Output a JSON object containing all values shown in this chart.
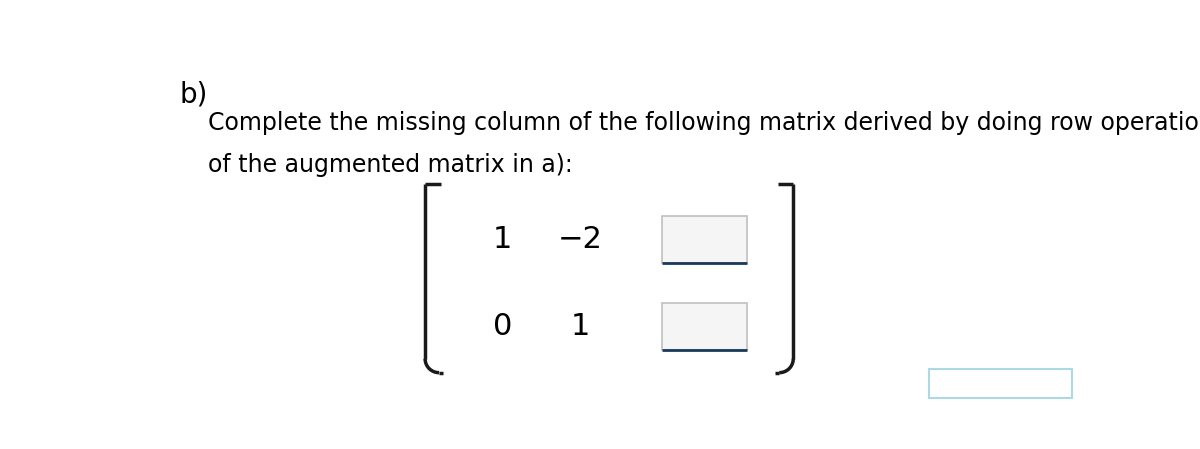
{
  "title_label": "b)",
  "title_fontsize": 20,
  "title_bold": false,
  "body_text_line1": "Complete the missing column of the following matrix derived by doing row operation",
  "body_text_line2": "of the augmented matrix in a):",
  "body_fontsize": 17,
  "background_color": "#ffffff",
  "row1_values": [
    "1",
    "−2"
  ],
  "row2_values": [
    "0",
    "1"
  ],
  "bracket_color": "#1a1a1a",
  "box_fill_color": "#f5f5f5",
  "box_top_edge_color": "#c0c0c0",
  "box_side_edge_color": "#c0c0c0",
  "box_bottom_edge_color": "#1a3a5c",
  "line_color": "#1a3a5c",
  "bottom_right_box_color": "#add8e6"
}
